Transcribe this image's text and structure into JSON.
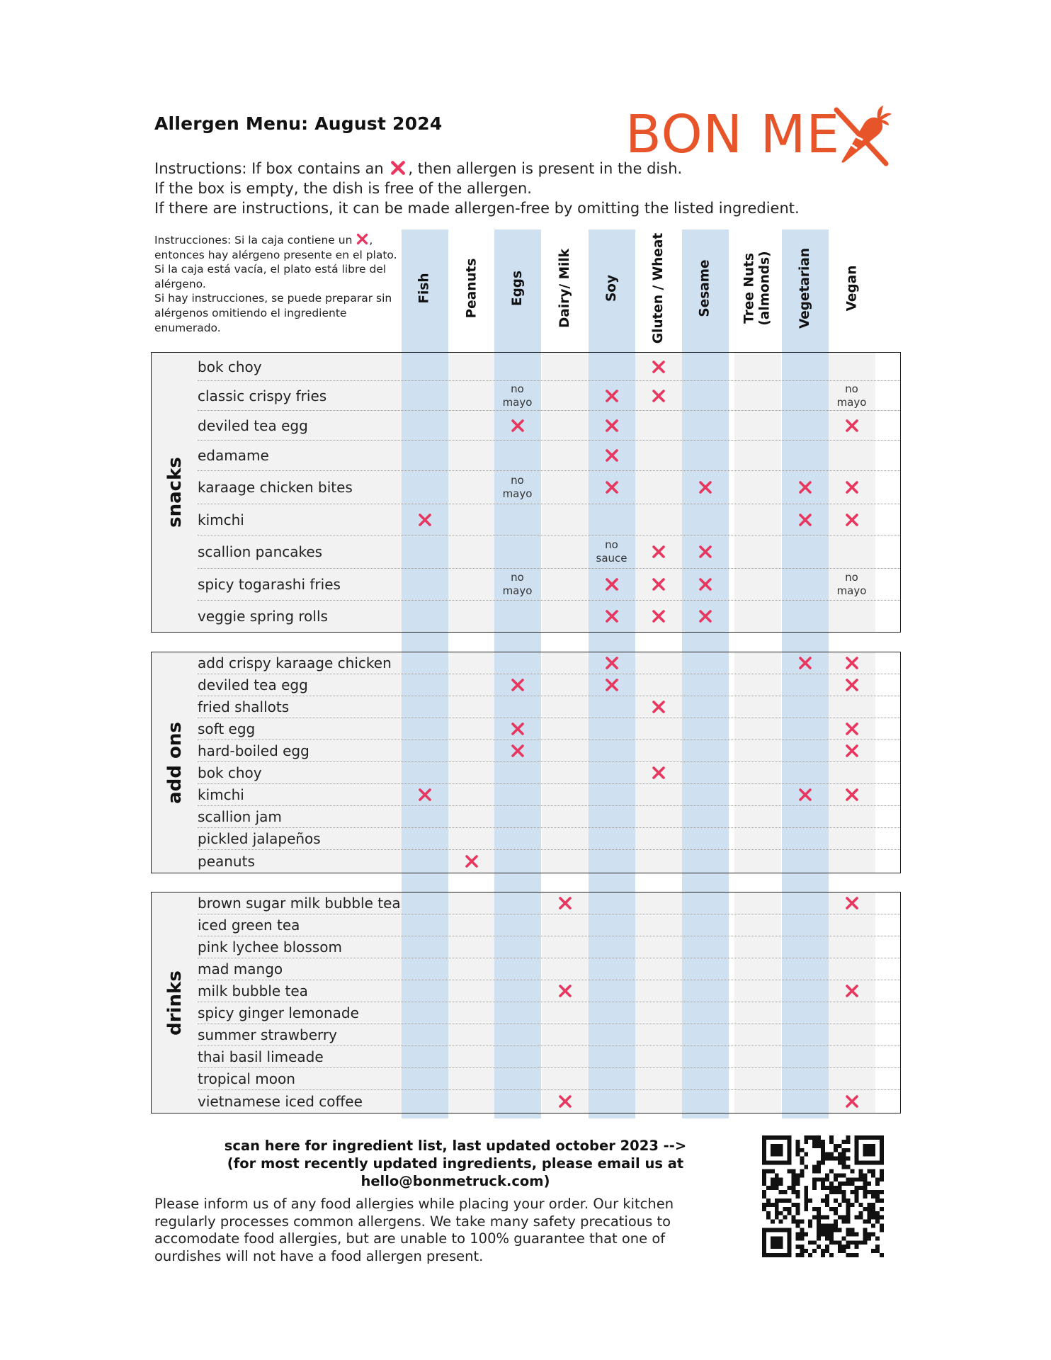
{
  "header": {
    "title": "Allergen Menu: August 2024",
    "brand": "BON ME",
    "brand_color": "#e8542a"
  },
  "instructions_en": {
    "line1_before": "Instructions: If box contains an",
    "line1_after": ", then allergen is present in the dish.",
    "line2": "If the box is empty, the dish is free of the allergen.",
    "line3": "If there are instructions, it can be made allergen-free by omitting the listed ingredient."
  },
  "instructions_es": {
    "line1_before": "Instrucciones: Si la caja contiene un",
    "line1_after": ",",
    "line2": "entonces hay alérgeno presente en el plato.",
    "line3": "Si la caja está vacía, el plato está libre del",
    "line4": "alérgeno.",
    "line5": "Si hay instrucciones, se puede preparar sin",
    "line6": "alérgenos omitiendo el ingrediente",
    "line7": "enumerado."
  },
  "x_icon_color": "#e8365f",
  "shaded_column_color": "#cfe0f1",
  "columns": [
    "Fish",
    "Peanuts",
    "Eggs",
    "Dairy/ Milk",
    "Soy",
    "Gluten / Wheat",
    "Sesame",
    "Tree Nuts (almonds)",
    "Vegetarian",
    "Vegan"
  ],
  "sections": [
    {
      "label": "snacks",
      "rows": [
        {
          "name": "bok choy",
          "cells": [
            "",
            "",
            "",
            "",
            "",
            "x",
            "",
            "",
            "",
            ""
          ]
        },
        {
          "name": "classic crispy fries",
          "cells": [
            "",
            "",
            "no mayo",
            "",
            "x",
            "x",
            "",
            "",
            "",
            "no mayo"
          ]
        },
        {
          "name": "deviled tea egg",
          "cells": [
            "",
            "",
            "x",
            "",
            "x",
            "",
            "",
            "",
            "",
            "x"
          ]
        },
        {
          "name": "edamame",
          "cells": [
            "",
            "",
            "",
            "",
            "x",
            "",
            "",
            "",
            "",
            ""
          ]
        },
        {
          "name": "karaage chicken bites",
          "cells": [
            "",
            "",
            "no mayo",
            "",
            "x",
            "",
            "x",
            "",
            "x",
            "x"
          ]
        },
        {
          "name": "kimchi",
          "cells": [
            "x",
            "",
            "",
            "",
            "",
            "",
            "",
            "",
            "x",
            "x"
          ]
        },
        {
          "name": "scallion pancakes",
          "cells": [
            "",
            "",
            "",
            "",
            "no sauce",
            "x",
            "x",
            "",
            "",
            ""
          ]
        },
        {
          "name": "spicy togarashi fries",
          "cells": [
            "",
            "",
            "no mayo",
            "",
            "x",
            "x",
            "x",
            "",
            "",
            "no mayo"
          ]
        },
        {
          "name": "veggie spring rolls",
          "cells": [
            "",
            "",
            "",
            "",
            "x",
            "x",
            "x",
            "",
            "",
            ""
          ]
        }
      ]
    },
    {
      "label": "add ons",
      "rows": [
        {
          "name": "add crispy karaage chicken",
          "cells": [
            "",
            "",
            "",
            "",
            "x",
            "",
            "",
            "",
            "x",
            "x"
          ]
        },
        {
          "name": "deviled tea egg",
          "cells": [
            "",
            "",
            "x",
            "",
            "x",
            "",
            "",
            "",
            "",
            "x"
          ]
        },
        {
          "name": "fried shallots",
          "cells": [
            "",
            "",
            "",
            "",
            "",
            "x",
            "",
            "",
            "",
            ""
          ]
        },
        {
          "name": "soft egg",
          "cells": [
            "",
            "",
            "x",
            "",
            "",
            "",
            "",
            "",
            "",
            "x"
          ]
        },
        {
          "name": "hard-boiled egg",
          "cells": [
            "",
            "",
            "x",
            "",
            "",
            "",
            "",
            "",
            "",
            "x"
          ]
        },
        {
          "name": "bok choy",
          "cells": [
            "",
            "",
            "",
            "",
            "",
            "x",
            "",
            "",
            "",
            ""
          ]
        },
        {
          "name": "kimchi",
          "cells": [
            "x",
            "",
            "",
            "",
            "",
            "",
            "",
            "",
            "x",
            "x"
          ]
        },
        {
          "name": "scallion jam",
          "cells": [
            "",
            "",
            "",
            "",
            "",
            "",
            "",
            "",
            "",
            ""
          ]
        },
        {
          "name": "pickled jalapeños",
          "cells": [
            "",
            "",
            "",
            "",
            "",
            "",
            "",
            "",
            "",
            ""
          ]
        },
        {
          "name": "peanuts",
          "cells": [
            "",
            "x",
            "",
            "",
            "",
            "",
            "",
            "",
            "",
            ""
          ]
        }
      ]
    },
    {
      "label": "drinks",
      "rows": [
        {
          "name": "brown sugar milk bubble tea",
          "cells": [
            "",
            "",
            "",
            "x",
            "",
            "",
            "",
            "",
            "",
            "x"
          ]
        },
        {
          "name": "iced green tea",
          "cells": [
            "",
            "",
            "",
            "",
            "",
            "",
            "",
            "",
            "",
            ""
          ]
        },
        {
          "name": "pink lychee blossom",
          "cells": [
            "",
            "",
            "",
            "",
            "",
            "",
            "",
            "",
            "",
            ""
          ]
        },
        {
          "name": "mad mango",
          "cells": [
            "",
            "",
            "",
            "",
            "",
            "",
            "",
            "",
            "",
            ""
          ]
        },
        {
          "name": "milk bubble tea",
          "cells": [
            "",
            "",
            "",
            "x",
            "",
            "",
            "",
            "",
            "",
            "x"
          ]
        },
        {
          "name": "spicy ginger lemonade",
          "cells": [
            "",
            "",
            "",
            "",
            "",
            "",
            "",
            "",
            "",
            ""
          ]
        },
        {
          "name": "summer strawberry",
          "cells": [
            "",
            "",
            "",
            "",
            "",
            "",
            "",
            "",
            "",
            ""
          ]
        },
        {
          "name": "thai basil limeade",
          "cells": [
            "",
            "",
            "",
            "",
            "",
            "",
            "",
            "",
            "",
            ""
          ]
        },
        {
          "name": "tropical moon",
          "cells": [
            "",
            "",
            "",
            "",
            "",
            "",
            "",
            "",
            "",
            ""
          ]
        },
        {
          "name": "vietnamese iced coffee",
          "cells": [
            "",
            "",
            "",
            "x",
            "",
            "",
            "",
            "",
            "",
            "x"
          ]
        }
      ]
    }
  ],
  "footer": {
    "scan_line1": "scan here for ingredient list, last updated october 2023 -->",
    "scan_line2": "(for most recently updated ingredients, please email us at hello@bonmetruck.com)",
    "disclaimer": "Please inform us of any food allergies while placing your order. Our kitchen regularly processes common allergens. We take many safety precatious to accomodate food allergies, but are unable to 100% guarantee that one of ourdishes will not have a food allergen present."
  }
}
